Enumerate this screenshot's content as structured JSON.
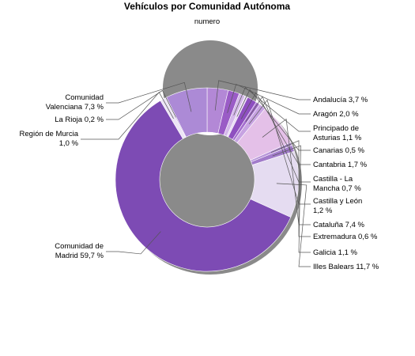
{
  "chart_data": {
    "type": "pie",
    "donut": true,
    "title": "Vehículos por Comunidad Autónoma",
    "subtitle": "numero",
    "legend": "none",
    "slices": [
      {
        "name": "Andalucía",
        "value": 3.7,
        "label": [
          "Andalucía 3,7 %"
        ],
        "color": "#b388d6"
      },
      {
        "name": "Aragón",
        "value": 2.0,
        "label": [
          "Aragón 2,0 %"
        ],
        "color": "#9a5cc6"
      },
      {
        "name": "Principado de Asturias",
        "value": 1.1,
        "label": [
          "Principado de",
          "Asturias 1,1 %"
        ],
        "color": "#d4b8ea"
      },
      {
        "name": "Canarias",
        "value": 0.5,
        "label": [
          "Canarias 0,5 %"
        ],
        "color": "#e8daf4"
      },
      {
        "name": "Cantabria",
        "value": 1.7,
        "label": [
          "Cantabria 1,7 %"
        ],
        "color": "#8e4fc0"
      },
      {
        "name": "Castilla - La Mancha",
        "value": 0.7,
        "label": [
          "Castilla - La",
          "Mancha 0,7 %"
        ],
        "color": "#a66fcf"
      },
      {
        "name": "Castilla y León",
        "value": 1.2,
        "label": [
          "Castilla y León",
          "1,2 %"
        ],
        "color": "#c7a3e2"
      },
      {
        "name": "Cataluña",
        "value": 7.4,
        "label": [
          "Cataluña 7,4 %"
        ],
        "color": "#e4c0e8"
      },
      {
        "name": "Extremadura",
        "value": 0.6,
        "label": [
          "Extremadura 0,6 %"
        ],
        "color": "#b795d9"
      },
      {
        "name": "Galicia",
        "value": 1.1,
        "label": [
          "Galicia 1,1 %"
        ],
        "color": "#a27ccb"
      },
      {
        "name": "Illes Balears",
        "value": 11.7,
        "label": [
          "Illes Balears 11,7 %"
        ],
        "color": "#e5dcf1"
      },
      {
        "name": "Comunidad de Madrid",
        "value": 59.7,
        "label": [
          "Comunidad de",
          "Madrid 59,7 %"
        ],
        "color": "#7d4bb4"
      },
      {
        "name": "Región de Murcia",
        "value": 1.0,
        "label": [
          "Región de Murcia",
          "1,0 %"
        ],
        "color": "#ece4f5"
      },
      {
        "name": "La Rioja",
        "value": 0.2,
        "label": [
          "La Rioja 0,2 %"
        ],
        "color": "#9f78c9"
      },
      {
        "name": "Comunidad Valenciana",
        "value": 7.3,
        "label": [
          "Comunidad",
          "Valenciana 7,3 %"
        ],
        "color": "#ac8ad6"
      }
    ]
  }
}
